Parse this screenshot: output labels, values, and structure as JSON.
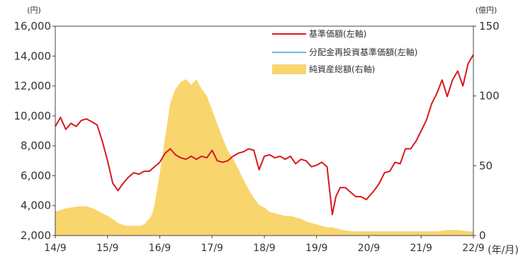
{
  "chart_data": {
    "type": "line",
    "title": "",
    "units": {
      "left": "(円)",
      "right": "(億円)",
      "x": "(年/月)"
    },
    "x_ticks": [
      "14/9",
      "15/9",
      "16/9",
      "17/9",
      "18/9",
      "19/9",
      "20/9",
      "21/9",
      "22/9"
    ],
    "y_left": {
      "range": [
        2000,
        16000
      ],
      "ticks": [
        "2,000",
        "4,000",
        "6,000",
        "8,000",
        "10,000",
        "12,000",
        "14,000",
        "16,000"
      ]
    },
    "y_right": {
      "range": [
        0,
        150
      ],
      "ticks": [
        "0",
        "50",
        "100",
        "150"
      ]
    },
    "grid": false,
    "legend_position": "top-right",
    "legend": [
      {
        "label": "基準価額(左軸)",
        "color": "#d7191f",
        "kind": "line"
      },
      {
        "label": "分配金再投資基準価額(左軸)",
        "color": "#73b6e6",
        "kind": "line"
      },
      {
        "label": "純資産総額(右軸)",
        "color": "#f9d56e",
        "kind": "area"
      }
    ],
    "series": [
      {
        "name": "基準価額(左軸)",
        "axis": "left",
        "type": "line",
        "color": "#d7191f",
        "x": [
          2014.75,
          2014.85,
          2014.95,
          2015.05,
          2015.15,
          2015.25,
          2015.35,
          2015.45,
          2015.55,
          2015.65,
          2015.75,
          2015.85,
          2015.95,
          2016.05,
          2016.15,
          2016.25,
          2016.35,
          2016.45,
          2016.55,
          2016.65,
          2016.75,
          2016.85,
          2016.95,
          2017.05,
          2017.15,
          2017.25,
          2017.35,
          2017.45,
          2017.55,
          2017.65,
          2017.75,
          2017.85,
          2017.95,
          2018.05,
          2018.15,
          2018.25,
          2018.35,
          2018.45,
          2018.55,
          2018.65,
          2018.75,
          2018.85,
          2018.95,
          2019.05,
          2019.15,
          2019.25,
          2019.35,
          2019.45,
          2019.55,
          2019.65,
          2019.75,
          2019.85,
          2019.95,
          2020.05,
          2020.12,
          2020.2,
          2020.3,
          2020.4,
          2020.5,
          2020.6,
          2020.7,
          2020.75,
          2020.85,
          2020.95,
          2021.05,
          2021.15,
          2021.25,
          2021.35,
          2021.45,
          2021.55,
          2021.65,
          2021.75,
          2021.85,
          2021.95,
          2022.05,
          2022.15,
          2022.25,
          2022.35,
          2022.45,
          2022.55,
          2022.65,
          2022.75
        ],
        "values": [
          9300,
          9900,
          9100,
          9500,
          9300,
          9700,
          9800,
          9600,
          9400,
          8300,
          7000,
          5500,
          5000,
          5500,
          5900,
          6200,
          6100,
          6300,
          6300,
          6600,
          6900,
          7500,
          7800,
          7400,
          7200,
          7100,
          7300,
          7100,
          7300,
          7200,
          7700,
          7000,
          6900,
          7000,
          7300,
          7500,
          7600,
          7800,
          7700,
          6400,
          7300,
          7400,
          7200,
          7300,
          7100,
          7300,
          6800,
          7100,
          7000,
          6600,
          6700,
          6900,
          6600,
          3400,
          4600,
          5200,
          5200,
          4900,
          4600,
          4600,
          4400,
          4600,
          5000,
          5500,
          6200,
          6300,
          6900,
          6800,
          7800,
          7800,
          8300,
          9000,
          9700,
          10800,
          11500,
          12400,
          11300,
          12400,
          13000,
          12000,
          13500,
          14100
        ]
      },
      {
        "name": "純資産総額(右軸)",
        "axis": "right",
        "type": "area",
        "color": "#f9d56e",
        "x": [
          2014.75,
          2014.9,
          2015.05,
          2015.2,
          2015.35,
          2015.5,
          2015.65,
          2015.8,
          2015.95,
          2016.1,
          2016.25,
          2016.35,
          2016.45,
          2016.55,
          2016.6,
          2016.65,
          2016.75,
          2016.85,
          2016.95,
          2017.05,
          2017.15,
          2017.25,
          2017.35,
          2017.45,
          2017.55,
          2017.65,
          2017.75,
          2017.85,
          2017.95,
          2018.05,
          2018.15,
          2018.25,
          2018.35,
          2018.45,
          2018.55,
          2018.65,
          2018.75,
          2018.85,
          2018.95,
          2019.05,
          2019.15,
          2019.25,
          2019.35,
          2019.45,
          2019.55,
          2019.65,
          2019.75,
          2019.85,
          2019.95,
          2020.05,
          2020.25,
          2020.45,
          2020.65,
          2020.85,
          2021.05,
          2021.25,
          2021.45,
          2021.65,
          2021.85,
          2022.05,
          2022.25,
          2022.45,
          2022.65,
          2022.75
        ],
        "values": [
          17,
          19,
          20,
          21,
          21,
          19,
          16,
          13,
          9,
          7,
          7,
          7,
          8,
          12,
          15,
          22,
          45,
          70,
          95,
          105,
          110,
          112,
          108,
          112,
          105,
          100,
          90,
          80,
          70,
          61,
          55,
          48,
          40,
          33,
          27,
          22,
          20,
          17,
          16,
          15,
          14,
          14,
          13,
          12,
          10,
          9,
          8,
          7,
          6,
          6,
          4,
          3,
          3,
          3,
          3,
          3,
          3,
          3,
          3,
          3,
          4,
          4,
          3,
          3
        ]
      },
      {
        "name": "分配金再投資基準価額(左軸)",
        "axis": "left",
        "type": "line",
        "color": "#73b6e6",
        "x": [],
        "values": []
      }
    ]
  }
}
